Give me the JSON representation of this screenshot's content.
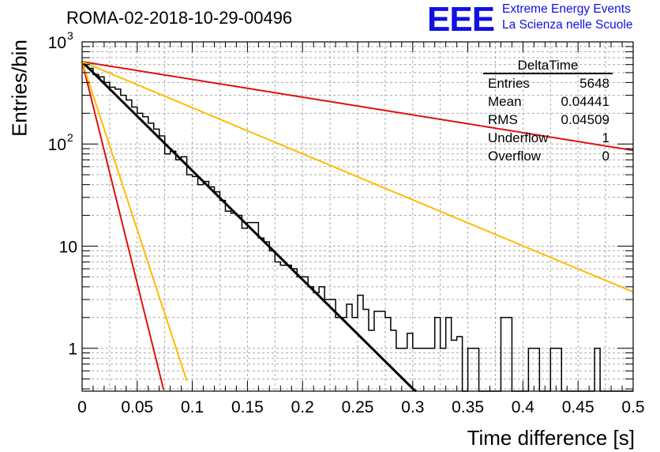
{
  "plot_title": "ROMA-02-2018-10-29-00496",
  "logo": {
    "mark": "EEE",
    "line1": "Extreme Energy Events",
    "line2": "La Scienza nelle Scuole",
    "color": "#1010e6"
  },
  "stats": {
    "title": "DeltaTime",
    "rows": [
      {
        "label": "Entries",
        "value": "5648"
      },
      {
        "label": "Mean",
        "value": "0.04441"
      },
      {
        "label": "RMS",
        "value": "0.04509"
      },
      {
        "label": "Underflow",
        "value": "1"
      },
      {
        "label": "Overflow",
        "value": "0"
      }
    ]
  },
  "chart_data": {
    "type": "histogram",
    "title": "ROMA-02-2018-10-29-00496",
    "xlabel": "Time difference [s]",
    "ylabel": "Entries/bin",
    "xlim": [
      0,
      0.5
    ],
    "ylim": [
      0.38,
      1000
    ],
    "y_scale": "log",
    "grid": true,
    "x_ticks": [
      "0",
      "0.05",
      "0.1",
      "0.15",
      "0.2",
      "0.25",
      "0.3",
      "0.35",
      "0.4",
      "0.45",
      "0.5"
    ],
    "y_ticks": [
      {
        "value": 1,
        "label": "1"
      },
      {
        "value": 10,
        "label": "10"
      },
      {
        "value": 100,
        "label": "10",
        "exp": "2"
      },
      {
        "value": 1000,
        "label": "10",
        "exp": "3"
      }
    ],
    "bin_width": 0.005,
    "histogram_counts": [
      580,
      550,
      480,
      455,
      400,
      360,
      345,
      300,
      270,
      230,
      200,
      185,
      160,
      140,
      120,
      80,
      85,
      70,
      75,
      50,
      48,
      40,
      43,
      38,
      34,
      28,
      22,
      21,
      20,
      15,
      17,
      17,
      12,
      11,
      9,
      7,
      6.5,
      6.5,
      6,
      5,
      5,
      4,
      3.5,
      4,
      3,
      3,
      2,
      2,
      2.7,
      2,
      3.3,
      2.4,
      1.5,
      2.3,
      2.3,
      2,
      1.5,
      1,
      1,
      1.4,
      1.0,
      1.0,
      1.0,
      1.0,
      2,
      1,
      2,
      1.2,
      1.3,
      0.38,
      1,
      1,
      0.38,
      0.38,
      0.38,
      0,
      2.0,
      2.0,
      0.38,
      0.38,
      0.38,
      1,
      1,
      0.38,
      0,
      1,
      1,
      0.38,
      0,
      0,
      0,
      0,
      0,
      1,
      0,
      0,
      0,
      0,
      0,
      0
    ],
    "series": [
      {
        "color": "#000000",
        "amplitude": 640,
        "tau": 0.0407,
        "x_end": 0.33
      },
      {
        "color": "#dd1111",
        "amplitude": 640,
        "tau": 0.01,
        "x_end": 0.074
      },
      {
        "color": "#ffbb00",
        "amplitude": 640,
        "tau": 0.0132,
        "x_end": 0.095
      },
      {
        "color": "#dd1111",
        "amplitude": 640,
        "tau": 0.25,
        "x_end": 0.5
      },
      {
        "color": "#ffbb00",
        "amplitude": 640,
        "tau": 0.0963,
        "x_end": 0.5
      }
    ]
  }
}
